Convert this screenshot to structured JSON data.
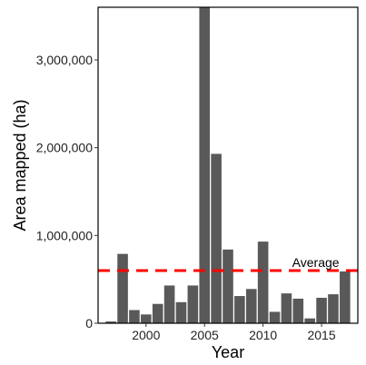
{
  "chart_data": {
    "type": "bar",
    "xlabel": "Year",
    "ylabel": "Area mapped (ha)",
    "x": [
      1997,
      1998,
      1999,
      2000,
      2001,
      2002,
      2003,
      2004,
      2005,
      2006,
      2007,
      2008,
      2009,
      2010,
      2011,
      2012,
      2013,
      2014,
      2015,
      2016,
      2017
    ],
    "values": [
      20000,
      790000,
      150000,
      100000,
      220000,
      430000,
      240000,
      430000,
      3600000,
      1930000,
      840000,
      310000,
      390000,
      930000,
      130000,
      340000,
      280000,
      55000,
      290000,
      330000,
      590000
    ],
    "xlim": [
      1995.9,
      2018.1
    ],
    "ylim": [
      0,
      3600000
    ],
    "x_ticks": [
      2000,
      2005,
      2010,
      2015
    ],
    "x_tick_labels": [
      "2000",
      "2005",
      "2010",
      "2015"
    ],
    "y_ticks": [
      0,
      1000000,
      2000000,
      3000000
    ],
    "y_tick_labels": [
      "0",
      "1,000,000",
      "2,000,000",
      "3,000,000"
    ],
    "average": 600000,
    "average_label": "Average",
    "bar_color": "#595959",
    "average_color": "#ff0000",
    "grid": false
  }
}
